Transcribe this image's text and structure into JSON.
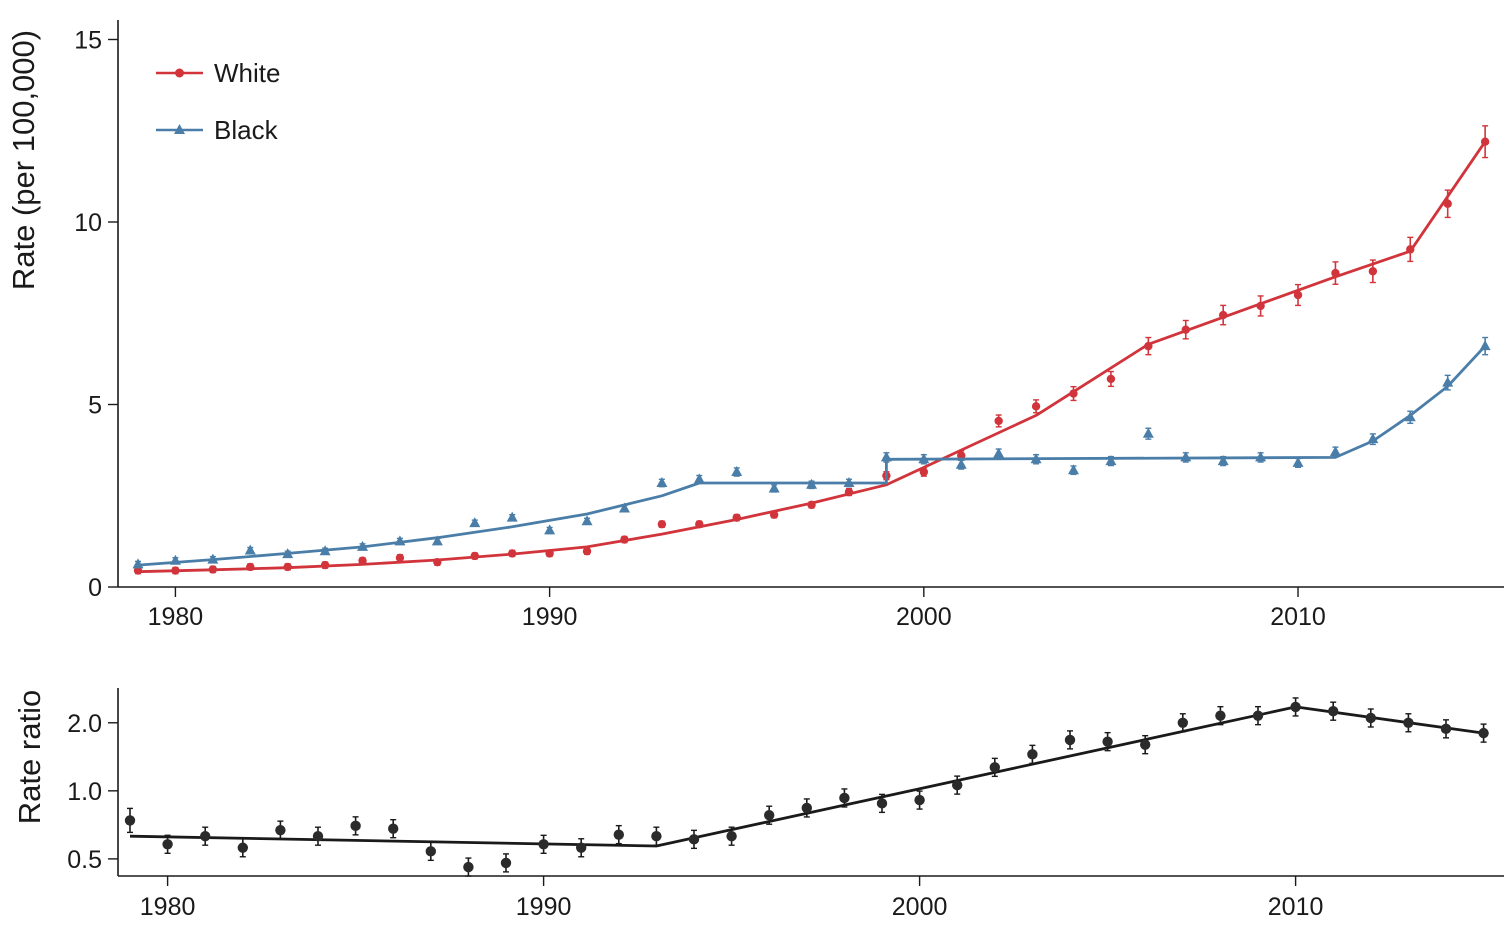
{
  "chart_data": [
    {
      "type": "line",
      "xlabel": "",
      "ylabel": "Rate (per 100,000)",
      "xlim": [
        1979,
        2015.5
      ],
      "ylim": [
        0,
        15
      ],
      "xticks": [
        1980,
        1990,
        2000,
        2010
      ],
      "yticks": [
        0,
        5,
        10,
        15
      ],
      "xtick_labels": [
        "1980",
        "1990",
        "2000",
        "2010"
      ],
      "ytick_labels": [
        "0",
        "5",
        "10",
        "15"
      ],
      "grid": false,
      "legend_placement": "top-left",
      "series": [
        {
          "name": "White",
          "color": "#d1343b",
          "marker": "circle",
          "x": [
            1979,
            1980,
            1981,
            1982,
            1983,
            1984,
            1985,
            1986,
            1987,
            1988,
            1989,
            1990,
            1991,
            1992,
            1993,
            1994,
            1995,
            1996,
            1997,
            1998,
            1999,
            2000,
            2001,
            2002,
            2003,
            2004,
            2005,
            2006,
            2007,
            2008,
            2009,
            2010,
            2011,
            2012,
            2013,
            2014,
            2015
          ],
          "y": [
            0.45,
            0.45,
            0.48,
            0.55,
            0.55,
            0.6,
            0.72,
            0.8,
            0.68,
            0.85,
            0.92,
            0.92,
            0.98,
            1.3,
            1.72,
            1.72,
            1.9,
            1.98,
            2.25,
            2.6,
            3.05,
            3.15,
            3.6,
            4.55,
            4.95,
            5.3,
            5.7,
            6.6,
            7.05,
            7.45,
            7.7,
            8.0,
            8.6,
            8.65,
            9.25,
            10.5,
            12.2
          ],
          "fit_x": [
            1979,
            1981,
            1983,
            1985,
            1987,
            1989,
            1991,
            1993,
            1995,
            1997,
            1999,
            2001,
            2003,
            2006,
            2011,
            2013,
            2015
          ],
          "fit_y": [
            0.42,
            0.47,
            0.53,
            0.62,
            0.74,
            0.9,
            1.1,
            1.45,
            1.85,
            2.3,
            2.8,
            3.75,
            4.7,
            6.65,
            8.5,
            9.2,
            12.2
          ]
        },
        {
          "name": "Black",
          "color": "#4a7ea8",
          "marker": "triangle",
          "x": [
            1979,
            1980,
            1981,
            1982,
            1983,
            1984,
            1985,
            1986,
            1987,
            1988,
            1989,
            1990,
            1991,
            1992,
            1993,
            1994,
            1995,
            1996,
            1997,
            1998,
            1999,
            2000,
            2001,
            2002,
            2003,
            2004,
            2005,
            2006,
            2007,
            2008,
            2009,
            2010,
            2011,
            2012,
            2013,
            2014,
            2015
          ],
          "y": [
            0.62,
            0.72,
            0.75,
            1.0,
            0.9,
            0.98,
            1.1,
            1.25,
            1.25,
            1.75,
            1.9,
            1.55,
            1.8,
            2.15,
            2.85,
            2.95,
            3.15,
            2.7,
            2.8,
            2.85,
            3.55,
            3.5,
            3.35,
            3.65,
            3.5,
            3.2,
            3.45,
            4.2,
            3.55,
            3.45,
            3.55,
            3.4,
            3.7,
            4.05,
            4.65,
            5.6,
            6.6
          ],
          "fit_x": [
            1979,
            1981,
            1983,
            1985,
            1987,
            1989,
            1991,
            1993,
            1994,
            1999,
            1999.0001,
            2011,
            2012,
            2013,
            2014,
            2015
          ],
          "fit_y": [
            0.6,
            0.75,
            0.92,
            1.1,
            1.35,
            1.65,
            2.0,
            2.5,
            2.85,
            2.85,
            3.5,
            3.55,
            4.0,
            4.7,
            5.5,
            6.6
          ]
        }
      ]
    },
    {
      "type": "scatter",
      "xlabel": "",
      "ylabel": "Rate ratio",
      "scale": "log",
      "xlim": [
        1979,
        2015.5
      ],
      "ylim": [
        0.42,
        2.85
      ],
      "xticks": [
        1980,
        1990,
        2000,
        2010
      ],
      "yticks": [
        0.5,
        1.0,
        2.0
      ],
      "xtick_labels": [
        "1980",
        "1990",
        "2000",
        "2010"
      ],
      "ytick_labels": [
        "0.5",
        "1.0",
        "2.0"
      ],
      "grid": false,
      "series": [
        {
          "color": "#1a1a1a",
          "marker": "circle",
          "x": [
            1979,
            1980,
            1981,
            1982,
            1983,
            1984,
            1985,
            1986,
            1987,
            1988,
            1989,
            1990,
            1991,
            1992,
            1993,
            1994,
            1995,
            1996,
            1997,
            1998,
            1999,
            2000,
            2001,
            2002,
            2003,
            2004,
            2005,
            2006,
            2007,
            2008,
            2009,
            2010,
            2011,
            2012,
            2013,
            2014,
            2015
          ],
          "y": [
            0.74,
            0.58,
            0.63,
            0.56,
            0.67,
            0.63,
            0.7,
            0.68,
            0.54,
            0.46,
            0.48,
            0.58,
            0.56,
            0.64,
            0.63,
            0.61,
            0.63,
            0.78,
            0.84,
            0.93,
            0.88,
            0.91,
            1.06,
            1.27,
            1.45,
            1.68,
            1.65,
            1.6,
            2.0,
            2.15,
            2.15,
            2.35,
            2.25,
            2.1,
            2.0,
            1.88,
            1.8
          ],
          "fit_x": [
            1979,
            1993,
            2010,
            2015
          ],
          "fit_y": [
            0.63,
            0.57,
            2.35,
            1.8
          ]
        }
      ]
    }
  ]
}
